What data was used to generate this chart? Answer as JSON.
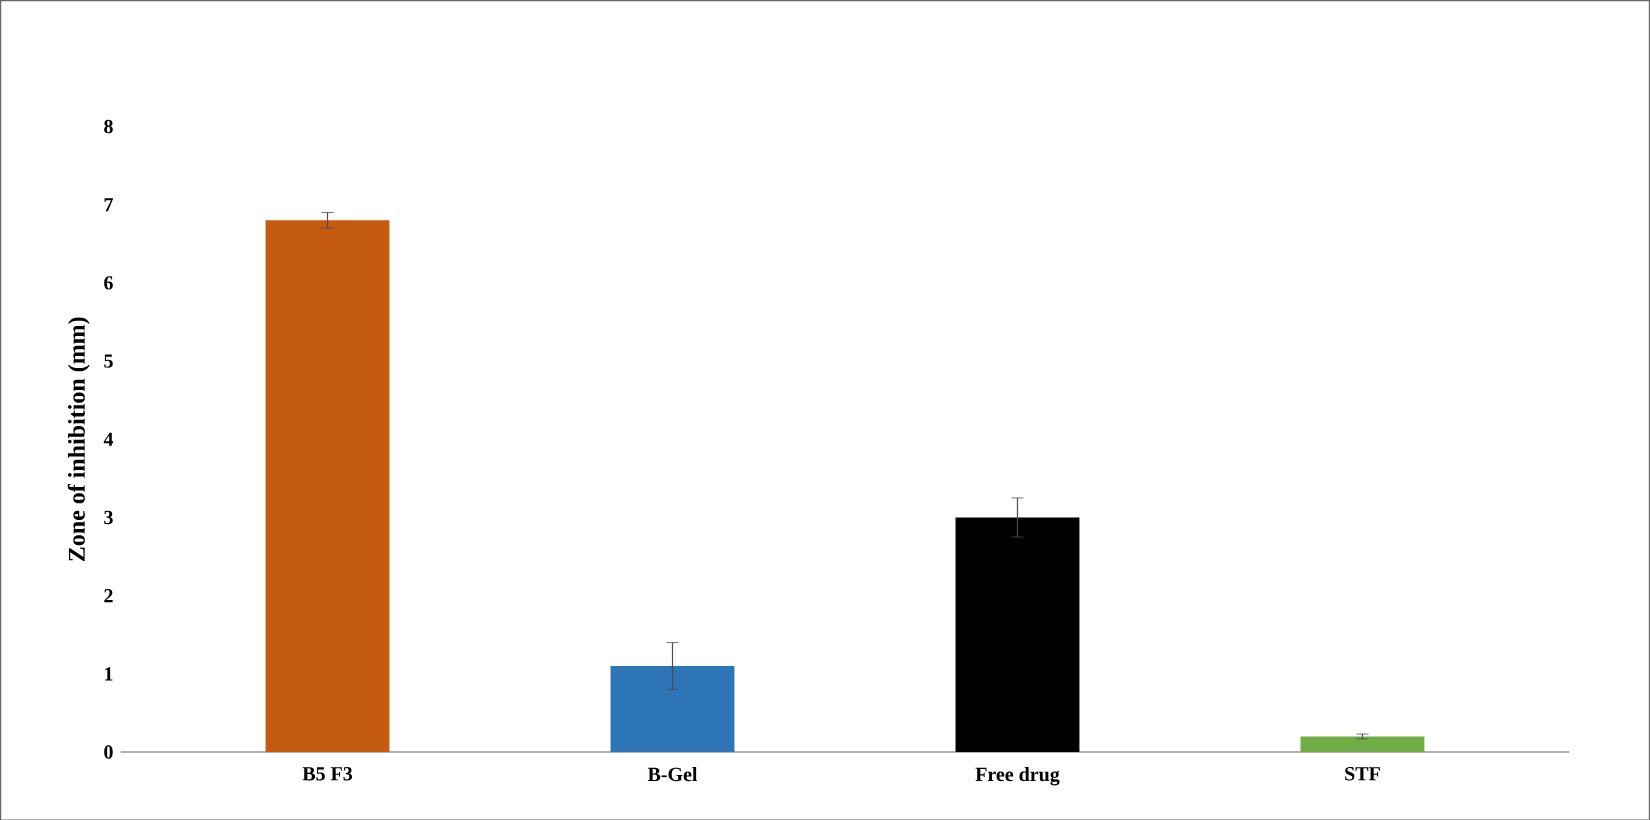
{
  "chart_data": {
    "type": "bar",
    "ylabel": "Zone of inhibition (mm)",
    "categories": [
      "B5 F3",
      "B-Gel",
      "Free drug",
      "STF"
    ],
    "values": [
      6.8,
      1.1,
      3.0,
      0.2
    ],
    "errors": [
      0.1,
      0.3,
      0.25,
      0.03
    ],
    "colors": [
      "#c55a11",
      "#2e75b6",
      "#000000",
      "#70ad47"
    ],
    "ylim": [
      0,
      8
    ],
    "yticks": [
      0,
      1,
      2,
      3,
      4,
      5,
      6,
      7,
      8
    ]
  }
}
